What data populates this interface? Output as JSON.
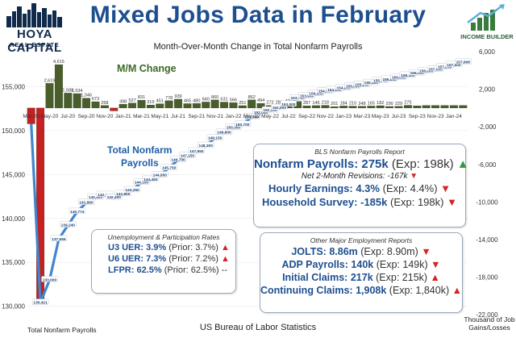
{
  "header": {
    "title": "Mixed Jobs Data in February",
    "subtitle": "Month-Over-Month Change in Total Nonfarm Payrolls"
  },
  "logos": {
    "left_line1": "HOYA CAPITAL",
    "left_line2": "REAL ESTATE",
    "right": "INCOME BUILDER"
  },
  "colors": {
    "bars": "#4a5e2a",
    "bars_negative": "#c62020",
    "line": "#3f86cf",
    "title": "#1d4f8f"
  },
  "chart_data": {
    "type": "bar",
    "series": [
      {
        "name": "M/M Change",
        "type": "bar",
        "axis": "right"
      },
      {
        "name": "Total Nonfarm Payrolls",
        "type": "line",
        "axis": "left"
      }
    ],
    "categories": [
      "Mar-20",
      "Apr-20",
      "May-20",
      "Jun-20",
      "Jul-20",
      "Aug-20",
      "Sep-20",
      "Oct-20",
      "Nov-20",
      "Dec-20",
      "Jan-21",
      "Feb-21",
      "Mar-21",
      "Apr-21",
      "May-21",
      "Jun-21",
      "Jul-21",
      "Aug-21",
      "Sep-21",
      "Oct-21",
      "Nov-21",
      "Dec-21",
      "Jan-22",
      "Feb-22",
      "Mar-22",
      "Apr-22",
      "May-22",
      "Jun-22",
      "Jul-22",
      "Aug-22",
      "Sep-22",
      "Oct-22",
      "Nov-22",
      "Dec-22",
      "Jan-23",
      "Feb-23",
      "Mar-23",
      "Apr-23",
      "May-23",
      "Jun-23",
      "Jul-23",
      "Aug-23",
      "Sep-23",
      "Oct-23",
      "Nov-23",
      "Dec-23",
      "Jan-24",
      "Feb-24"
    ],
    "tick_labels": [
      "Mar-20",
      "May-20",
      "Jul-20",
      "Sep-20",
      "Nov-20",
      "Jan-21",
      "Mar-21",
      "May-21",
      "Jul-21",
      "Sep-21",
      "Nov-21",
      "Jan-22",
      "Mar-22",
      "May-22",
      "Jul-22",
      "Sep-22",
      "Nov-22",
      "Jan-23",
      "Mar-23",
      "May-23",
      "Jul-23",
      "Sep-23",
      "Nov-23",
      "Jan-24"
    ],
    "mm_change": [
      -1683,
      -20493,
      2619,
      4615,
      1588,
      1534,
      1046,
      673,
      268,
      -306,
      398,
      527,
      831,
      319,
      451,
      778,
      939,
      465,
      480,
      640,
      860,
      631,
      566,
      251,
      862,
      494,
      272,
      286,
      426,
      690,
      233,
      257,
      287,
      146,
      218,
      201,
      184,
      210,
      248,
      165,
      182,
      290,
      229,
      275,
      275,
      275,
      275,
      275
    ],
    "mm_labels_visible": [
      "2,619",
      "4,615",
      "1,588",
      "1,534",
      "1,046",
      "673",
      "268",
      "398",
      "527",
      "831",
      "319",
      "451",
      "778",
      "939",
      "465",
      "480",
      "640",
      "860",
      "631",
      "566",
      "251",
      "862",
      "494",
      "272",
      "286",
      "426",
      "690",
      "287",
      "146",
      "218",
      "201",
      "184",
      "210",
      "248",
      "165",
      "182",
      "290",
      "229",
      "275"
    ],
    "payrolls": [
      150800,
      130421,
      133000,
      137655,
      139240,
      140774,
      141800,
      142400,
      142700,
      142400,
      142800,
      143250,
      144100,
      144450,
      144950,
      145750,
      146700,
      147150,
      147650,
      148300,
      149150,
      149800,
      150350,
      150700,
      151550,
      152050,
      152330,
      152600,
      153000,
      153700,
      153950,
      154200,
      154500,
      154650,
      154850,
      155050,
      155250,
      155450,
      155700,
      155850,
      156050,
      156300,
      156550,
      156800,
      157000,
      157250,
      157500,
      157808
    ],
    "payroll_labels": [
      "130,421",
      "133,000",
      "137,655",
      "139,240",
      "140,774",
      "141,800",
      "142,400",
      "142,700",
      "142,400",
      "142,800",
      "143,250",
      "144,100",
      "144,450",
      "144,950",
      "145,750",
      "146,700",
      "147,150",
      "147,650",
      "148,300",
      "149,150",
      "149,800",
      "150,350",
      "150,700",
      "151,550",
      "152,050",
      "152,330",
      "152,600",
      "153,000",
      "153,700",
      "153,950",
      "154,200",
      "154,500",
      "154,650",
      "154,850",
      "155,050",
      "155,250",
      "155,450",
      "155,700",
      "155,850",
      "156,050",
      "156,300",
      "156,550",
      "156,800",
      "157,000",
      "157,250",
      "157,500",
      "157,808"
    ],
    "left_axis": {
      "ticks": [
        "130,000",
        "135,000",
        "140,000",
        "145,000",
        "150,000",
        "155,000"
      ],
      "ylim": [
        128500,
        159000
      ]
    },
    "right_axis": {
      "ticks": [
        "6,000",
        "2,000",
        "-2,000",
        "-6,000",
        "-10,000",
        "-14,000",
        "-18,000",
        "-22,000"
      ],
      "ylim": [
        -22500,
        6000
      ]
    },
    "annotations": [
      "M/M Change",
      "Total Nonfarm Payrolls"
    ]
  },
  "boxes": {
    "bls": {
      "header": "BLS Nonfarm Payrolls Report",
      "rows": [
        {
          "label": "Nonfarm Payrolls:",
          "value": "275k",
          "paren": "(Exp: 198k)",
          "arrow": "▲",
          "dir": "up"
        },
        {
          "label": "Net 2-Month Revisions:",
          "value": "-167k",
          "paren": "",
          "arrow": "▼",
          "dir": "down"
        },
        {
          "label": "Hourly Earnings:",
          "value": "4.3%",
          "paren": "(Exp: 4.4%)",
          "arrow": "▼",
          "dir": "down"
        },
        {
          "label": "Household Survey:",
          "value": "-185k",
          "paren": "(Exp: 198k)",
          "arrow": "▼",
          "dir": "down"
        }
      ]
    },
    "unemployment": {
      "header": "Unemployment & Participation Rates",
      "rows": [
        {
          "label": "U3 UER:",
          "value": "3.9%",
          "paren": "(Prior: 3.7%)",
          "arrow": "▲",
          "dir": "up_red"
        },
        {
          "label": "U6 UER:",
          "value": "7.3%",
          "paren": "(Prior: 7.2%)",
          "arrow": "▲",
          "dir": "up_red"
        },
        {
          "label": "LFPR:",
          "value": "62.5%",
          "paren": "(Prior: 62.5%)",
          "arrow": "--",
          "dir": "flat"
        }
      ]
    },
    "other": {
      "header": "Other Major Employment Reports",
      "rows": [
        {
          "label": "JOLTS:",
          "value": "8.86m",
          "paren": "(Exp: 8.90m)",
          "arrow": "▼",
          "dir": "down"
        },
        {
          "label": "ADP Payrolls:",
          "value": "140k",
          "paren": "(Exp: 149k)",
          "arrow": "▼",
          "dir": "down"
        },
        {
          "label": "Initial Claims:",
          "value": "217k",
          "paren": "(Exp: 215k)",
          "arrow": "▲",
          "dir": "up_red"
        },
        {
          "label": "Continuing Claims:",
          "value": "1,908k",
          "paren": "(Exp: 1,840k)",
          "arrow": "▲",
          "dir": "up_red"
        }
      ]
    }
  },
  "footer": {
    "left": "Total Nonfarm Payrolls",
    "center": "US Bureau of Labor Statistics",
    "right_line1": "Thousand of Job",
    "right_line2": "Gains/Losses"
  }
}
